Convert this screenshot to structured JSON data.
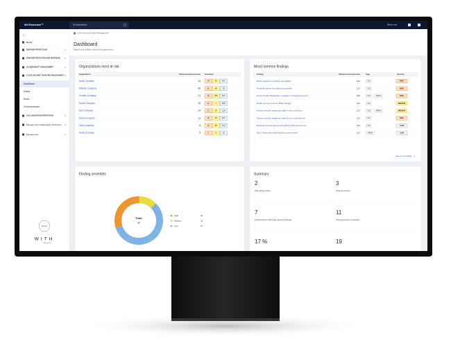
{
  "topbar": {
    "brand": "W/ Elements™",
    "org": "All organizations",
    "whats_new": "What's new"
  },
  "sidebar": {
    "items": [
      "Home",
      "ENDPOINT PROTECTION",
      "ENDPOINT DETECTION AND RESPONSE",
      "VULNERABILITY MANAGEMENT",
      "CLOUD SECURITY POSTURE MANAGEMENT"
    ],
    "sub_items": [
      "Dashboard",
      "Scans",
      "Rules",
      "Cloud accounts"
    ],
    "more_items": [
      "COLLABORATION PROTECTION",
      "Management Collaboration Protection",
      "Management"
    ],
    "demo": "Demo",
    "logo": "WITH",
    "logo_sub": "secure"
  },
  "page": {
    "breadcrumb": "Cloud Security Posture Management",
    "title": "Dashboard",
    "subtitle": "Data from all default scans in all organizations."
  },
  "orgs": {
    "title": "Organizations most at risk",
    "columns": [
      "Organization",
      "Affected cloud accounts",
      "Severities"
    ],
    "rows": [
      {
        "name": "Andy Company",
        "accounts": 44,
        "severities": [
          34,
          33,
          101
        ]
      },
      {
        "name": "Brittney Company",
        "accounts": 30,
        "severities": [
          40,
          88,
          78
        ]
      },
      {
        "name": "Charlie Company",
        "accounts": 21,
        "severities": [
          38,
          285,
          467
        ]
      },
      {
        "name": "Diana Company",
        "accounts": 20,
        "severities": [
          11,
          7,
          875
        ]
      },
      {
        "name": "Eric Company",
        "accounts": 14,
        "severities": [
          31,
          39,
          118
        ]
      },
      {
        "name": "Fiona Company",
        "accounts": 11,
        "severities": [
          29,
          65,
          187
        ]
      },
      {
        "name": "Gary Company",
        "accounts": 8,
        "severities": [
          10,
          89,
          144
        ]
      },
      {
        "name": "Heidi Company",
        "accounts": 5,
        "severities": [
          3,
          8,
          10
        ]
      }
    ]
  },
  "findings": {
    "title": "Most common findings",
    "columns": [
      "Finding",
      "Affected cloud accounts",
      "Tags",
      "Severity"
    ],
    "rows": [
      {
        "finding": "RDS snapshot is publicly accessible",
        "accounts": 122,
        "tags": [
          "CIS"
        ],
        "severity": "HIGH"
      },
      {
        "finding": "Redshift cluster is publicly accessible",
        "accounts": 122,
        "tags": [
          "CIS"
        ],
        "severity": "HIGH"
      },
      {
        "finding": "Cross Tenant Replication enabled on storage account",
        "accounts": 122,
        "tags": [
          "CIS",
          "HIPAA"
        ],
        "severity": "HIGH"
      },
      {
        "finding": "Public access to Azure Blob storage",
        "accounts": 122,
        "tags": [
          "CIS"
        ],
        "severity": "MEDIUM"
      },
      {
        "finding": "Ensure that the expiration date is set on all keys",
        "accounts": 122,
        "tags": [
          "CIS",
          "HIPAA"
        ],
        "severity": "MEDIUM"
      },
      {
        "finding": "Ensure that the expiration date is set on all Secrets",
        "accounts": 122,
        "tags": [
          "CIS"
        ],
        "severity": "HIGH"
      },
      {
        "finding": "Network security group rules allow UDP access ove...",
        "accounts": 122,
        "tags": [
          "CIS"
        ],
        "severity": "LOW"
      },
      {
        "finding": "NSG Rules allow SSH access over internet",
        "accounts": 122,
        "tags": [
          "HIPAA"
        ],
        "severity": "LOW"
      }
    ],
    "more": "See more details"
  },
  "chart_data": {
    "type": "pie",
    "title": "Finding severities",
    "center_label": "Total",
    "center_value": 99,
    "categories": [
      "High",
      "Medium",
      "Low"
    ],
    "values": [
      30,
      12,
      57
    ],
    "colors": [
      "#f0952e",
      "#e9dc3c",
      "#7fb3e6"
    ]
  },
  "summary": {
    "title": "Summary",
    "items": [
      {
        "value": "2",
        "label": "Scheduled scans"
      },
      {
        "value": "3",
        "label": "Cloud accounts"
      },
      {
        "value": "7",
        "label": "Organizations with high severity findings"
      },
      {
        "value": "11",
        "label": "Cloud accounts not active"
      },
      {
        "value": "17 %"
      },
      {
        "value": "19"
      }
    ]
  }
}
